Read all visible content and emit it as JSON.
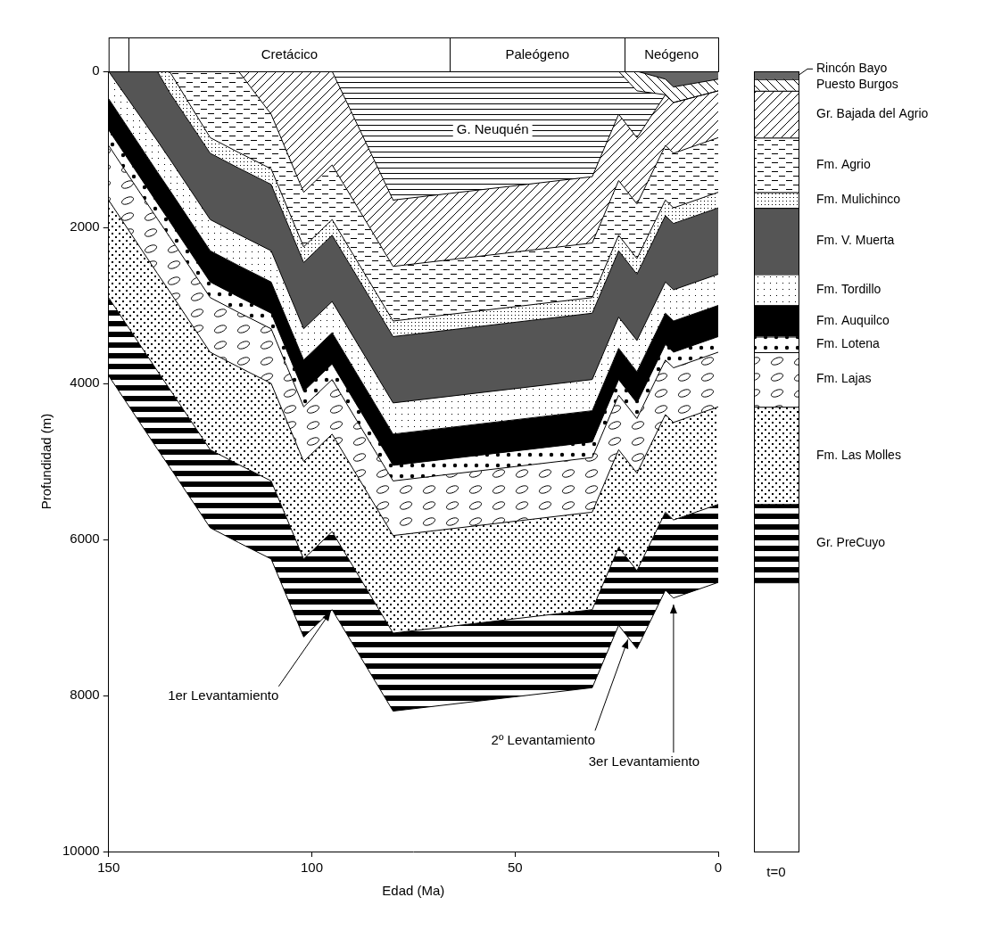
{
  "chart_data": {
    "type": "line",
    "x_label": "Edad (Ma)",
    "y_label": "Profundidad (m)",
    "xlim": [
      150,
      0
    ],
    "xticks": [
      150,
      100,
      50,
      0
    ],
    "ylim": [
      10000,
      0
    ],
    "yticks": [
      0,
      2000,
      4000,
      6000,
      8000,
      10000
    ],
    "grid": false,
    "x": [
      150,
      138,
      135,
      125,
      118,
      110,
      102,
      95,
      80,
      31,
      24.5,
      20,
      13,
      11,
      0
    ],
    "series": [
      {
        "name": "Rincón Bayo",
        "color": "#666666",
        "values": [
          0,
          0,
          0,
          0,
          0,
          0,
          0,
          0,
          0,
          0,
          0,
          0,
          100,
          200,
          100
        ]
      },
      {
        "name": "Puesto Burgos",
        "color": "#ffffff",
        "values": [
          0,
          0,
          0,
          0,
          0,
          0,
          0,
          0,
          0,
          0,
          0,
          250,
          300,
          400,
          250
        ]
      },
      {
        "name": "G. Neuquén",
        "color": "#ffffff",
        "values": [
          0,
          0,
          0,
          0,
          0,
          0,
          0,
          0,
          1650,
          1350,
          550,
          850,
          300,
          400,
          250
        ]
      },
      {
        "name": "Gr. Bajada del Agrio",
        "color": "#ffffff",
        "values": [
          0,
          0,
          0,
          0,
          0,
          550,
          1550,
          1200,
          2500,
          2200,
          1400,
          1700,
          950,
          1050,
          850
        ]
      },
      {
        "name": "Fm. Agrio",
        "color": "#ffffff",
        "values": [
          0,
          0,
          0,
          850,
          1040,
          1250,
          2250,
          1900,
          3200,
          2900,
          2100,
          2400,
          1650,
          1750,
          1550
        ]
      },
      {
        "name": "Fm. Mulichinco",
        "color": "#ffffff",
        "values": [
          0,
          0,
          270,
          1050,
          1240,
          1450,
          2450,
          2100,
          3400,
          3100,
          2300,
          2600,
          1850,
          1950,
          1750
        ]
      },
      {
        "name": "Fm. V. Muerta",
        "color": "#555555",
        "values": [
          0,
          890,
          1120,
          1900,
          2090,
          2300,
          3300,
          2950,
          4250,
          3950,
          3150,
          3450,
          2700,
          2800,
          2600
        ]
      },
      {
        "name": "Fm. Tordillo",
        "color": "#ffffff",
        "values": [
          350,
          1290,
          1520,
          2300,
          2490,
          2700,
          3700,
          3350,
          4650,
          4350,
          3550,
          3850,
          3100,
          3200,
          3000
        ]
      },
      {
        "name": "Fm. Auquilco",
        "color": "#000000",
        "values": [
          750,
          1690,
          1920,
          2700,
          2890,
          3100,
          4100,
          3750,
          5050,
          4750,
          3950,
          4250,
          3500,
          3600,
          3400
        ]
      },
      {
        "name": "Fm. Lotena",
        "color": "#ffffff",
        "values": [
          950,
          1890,
          2120,
          2900,
          3090,
          3300,
          4300,
          3950,
          5250,
          4950,
          4150,
          4450,
          3700,
          3800,
          3600
        ]
      },
      {
        "name": "Fm. Lajas",
        "color": "#ffffff",
        "values": [
          1650,
          2590,
          2820,
          3600,
          3790,
          4000,
          5000,
          4650,
          5950,
          5650,
          4850,
          5150,
          4400,
          4500,
          4300
        ]
      },
      {
        "name": "Fm. Las Molles",
        "color": "#ffffff",
        "values": [
          2900,
          3840,
          4070,
          4850,
          5040,
          5250,
          6250,
          5900,
          7200,
          6900,
          6100,
          6400,
          5650,
          5750,
          5550
        ]
      },
      {
        "name": "Gr. PreCuyo",
        "color": "#ffffff",
        "values": [
          3900,
          4840,
          5070,
          5850,
          6040,
          6250,
          7250,
          6900,
          8200,
          7900,
          7100,
          7400,
          6650,
          6750,
          6550
        ]
      }
    ],
    "periods": [
      {
        "label": "Cretácico",
        "start": 145,
        "end": 66
      },
      {
        "label": "Paleógeno",
        "start": 66,
        "end": 23
      },
      {
        "label": "Neógeno",
        "start": 23,
        "end": 0
      }
    ],
    "annotations": [
      {
        "text": "1er Levantamiento",
        "x": 95,
        "y": 6900
      },
      {
        "text": "2º Levantamiento",
        "x": 22,
        "y": 7250
      },
      {
        "text": "3er Levantamiento",
        "x": 11,
        "y": 6800
      }
    ],
    "column_label": "t=0"
  }
}
